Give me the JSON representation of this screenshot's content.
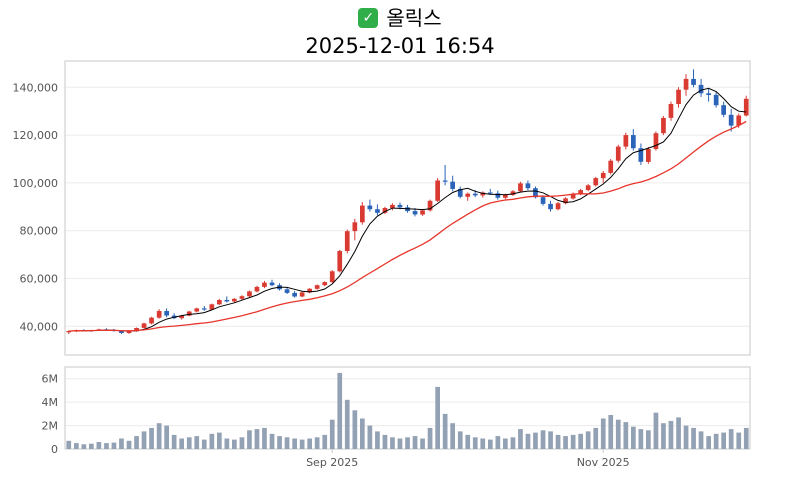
{
  "header": {
    "icon_glyph": "✓",
    "title": "올릭스",
    "timestamp": "2025-12-01 16:54"
  },
  "chart_data": {
    "type": "candlestick",
    "title": "올릭스",
    "subtitle": "2025-12-01 16:54",
    "legend_position": "none",
    "grid": true,
    "price_axis": {
      "ticks": [
        40000,
        60000,
        80000,
        100000,
        120000,
        140000
      ],
      "tick_labels": [
        "40,000",
        "60,000",
        "80,000",
        "100,000",
        "120,000",
        "140,000"
      ],
      "ylim": [
        28000,
        151000
      ]
    },
    "volume_axis": {
      "ticks": [
        0,
        2000000,
        4000000,
        6000000
      ],
      "tick_labels": [
        "0",
        "2M",
        "4M",
        "6M"
      ],
      "max": 7000000
    },
    "x_axis": {
      "tick_labels": [
        "Sep 2025",
        "Nov 2025"
      ],
      "tick_indices": [
        35,
        71
      ]
    },
    "ma_periods": {
      "fast": 5,
      "slow": 20
    },
    "colors": {
      "up": "#d93a32",
      "down": "#2a63b8",
      "ma_fast": "#000000",
      "ma_slow": "#e8352c",
      "volume": "#93a1b4",
      "grid": "#ececec",
      "spine": "#c9c9c9",
      "tick_text": "#555555",
      "check_green": "#2fae4a"
    },
    "candles_format": [
      "open",
      "high",
      "low",
      "close",
      "volume"
    ],
    "candles": [
      [
        37500,
        38300,
        36800,
        38000,
        700000
      ],
      [
        38000,
        38600,
        37600,
        38300,
        500000
      ],
      [
        38300,
        38800,
        37900,
        38100,
        400000
      ],
      [
        38100,
        38500,
        37700,
        38400,
        450000
      ],
      [
        38400,
        39000,
        38100,
        38700,
        600000
      ],
      [
        38700,
        39200,
        38300,
        38500,
        500000
      ],
      [
        38500,
        38900,
        37800,
        38000,
        550000
      ],
      [
        38000,
        38400,
        36900,
        37200,
        900000
      ],
      [
        37200,
        38000,
        36800,
        37900,
        700000
      ],
      [
        37900,
        39500,
        37700,
        39300,
        1100000
      ],
      [
        39300,
        41500,
        39100,
        41200,
        1500000
      ],
      [
        41200,
        44000,
        40800,
        43600,
        1800000
      ],
      [
        43600,
        47200,
        43200,
        46400,
        2200000
      ],
      [
        46400,
        47500,
        43800,
        44500,
        2000000
      ],
      [
        44500,
        45500,
        43000,
        43400,
        1200000
      ],
      [
        43400,
        44800,
        42800,
        44500,
        900000
      ],
      [
        44500,
        46500,
        44200,
        46200,
        1000000
      ],
      [
        46200,
        47800,
        45800,
        47500,
        1100000
      ],
      [
        47500,
        48500,
        46500,
        47000,
        800000
      ],
      [
        47000,
        49500,
        46800,
        49200,
        1300000
      ],
      [
        49200,
        51500,
        48900,
        51000,
        1400000
      ],
      [
        51000,
        52500,
        50000,
        50400,
        900000
      ],
      [
        50400,
        51800,
        49800,
        51500,
        800000
      ],
      [
        51500,
        53000,
        50900,
        52600,
        1000000
      ],
      [
        52600,
        55000,
        52200,
        54600,
        1600000
      ],
      [
        54600,
        57000,
        54200,
        56500,
        1700000
      ],
      [
        56500,
        59000,
        56000,
        58300,
        1800000
      ],
      [
        58300,
        59500,
        56800,
        57200,
        1300000
      ],
      [
        57200,
        58000,
        55000,
        55500,
        1100000
      ],
      [
        55500,
        56500,
        53500,
        54000,
        1000000
      ],
      [
        54000,
        54800,
        52000,
        52500,
        900000
      ],
      [
        52500,
        54500,
        52200,
        54200,
        800000
      ],
      [
        54200,
        56000,
        53800,
        55700,
        900000
      ],
      [
        55700,
        57500,
        55300,
        57200,
        1000000
      ],
      [
        57200,
        58800,
        56800,
        58500,
        1200000
      ],
      [
        58500,
        63500,
        58200,
        63000,
        2500000
      ],
      [
        63000,
        72000,
        62500,
        71500,
        6500000
      ],
      [
        71500,
        80500,
        70500,
        79800,
        4200000
      ],
      [
        79800,
        85000,
        76000,
        83500,
        3300000
      ],
      [
        83500,
        92000,
        82500,
        90500,
        2600000
      ],
      [
        90500,
        93000,
        88000,
        89000,
        2000000
      ],
      [
        89000,
        91000,
        86500,
        87500,
        1500000
      ],
      [
        87500,
        90000,
        87000,
        89500,
        1200000
      ],
      [
        89500,
        91500,
        88500,
        90800,
        1000000
      ],
      [
        90800,
        91800,
        89000,
        89800,
        900000
      ],
      [
        89800,
        90800,
        87500,
        88200,
        1000000
      ],
      [
        88200,
        89500,
        86000,
        86800,
        1100000
      ],
      [
        86800,
        89000,
        86200,
        88500,
        900000
      ],
      [
        88500,
        93000,
        88000,
        92500,
        1800000
      ],
      [
        92500,
        102000,
        92000,
        101000,
        5300000
      ],
      [
        101000,
        107500,
        99000,
        100500,
        3000000
      ],
      [
        100500,
        103000,
        96500,
        97500,
        2200000
      ],
      [
        97500,
        98500,
        93500,
        94200,
        1500000
      ],
      [
        94200,
        96000,
        92500,
        95500,
        1200000
      ],
      [
        95500,
        97000,
        94000,
        94800,
        1000000
      ],
      [
        94800,
        96500,
        93800,
        96000,
        900000
      ],
      [
        96000,
        97500,
        95000,
        95600,
        800000
      ],
      [
        95600,
        96800,
        93000,
        93800,
        1100000
      ],
      [
        93800,
        95500,
        93200,
        95000,
        900000
      ],
      [
        95000,
        97000,
        94500,
        96500,
        1000000
      ],
      [
        96500,
        100500,
        96000,
        99800,
        1700000
      ],
      [
        99800,
        101000,
        97000,
        97800,
        1300000
      ],
      [
        97800,
        98500,
        93500,
        94000,
        1400000
      ],
      [
        94000,
        94800,
        90500,
        91200,
        1600000
      ],
      [
        91200,
        92500,
        88000,
        89000,
        1500000
      ],
      [
        89000,
        92000,
        88500,
        91500,
        1200000
      ],
      [
        91500,
        94000,
        91000,
        93500,
        1100000
      ],
      [
        93500,
        96000,
        93000,
        95500,
        1200000
      ],
      [
        95500,
        97500,
        94800,
        97000,
        1300000
      ],
      [
        97000,
        99500,
        96500,
        99000,
        1500000
      ],
      [
        99000,
        102500,
        98500,
        102000,
        1800000
      ],
      [
        102000,
        105000,
        100000,
        104200,
        2600000
      ],
      [
        104200,
        110000,
        103500,
        109300,
        2900000
      ],
      [
        109300,
        116000,
        108500,
        115200,
        2500000
      ],
      [
        115200,
        121000,
        114000,
        120000,
        2300000
      ],
      [
        120000,
        122500,
        113500,
        114500,
        1900000
      ],
      [
        114500,
        116500,
        107500,
        108800,
        1700000
      ],
      [
        108800,
        115000,
        108000,
        114200,
        1600000
      ],
      [
        114200,
        121500,
        113500,
        120800,
        3100000
      ],
      [
        120800,
        128000,
        120000,
        127200,
        2200000
      ],
      [
        127200,
        134000,
        126000,
        133000,
        2400000
      ],
      [
        133000,
        140000,
        131500,
        139000,
        2700000
      ],
      [
        139000,
        145500,
        136500,
        143500,
        2000000
      ],
      [
        143500,
        147500,
        140000,
        141000,
        1800000
      ],
      [
        141000,
        143500,
        136000,
        137500,
        1500000
      ],
      [
        137500,
        139500,
        134000,
        136800,
        1100000
      ],
      [
        136800,
        138000,
        131500,
        132500,
        1300000
      ],
      [
        132500,
        134000,
        127500,
        128500,
        1400000
      ],
      [
        128500,
        131000,
        121500,
        124000,
        1700000
      ],
      [
        124000,
        129000,
        123000,
        128200,
        1400000
      ],
      [
        128200,
        136500,
        127800,
        135200,
        1800000
      ]
    ]
  }
}
